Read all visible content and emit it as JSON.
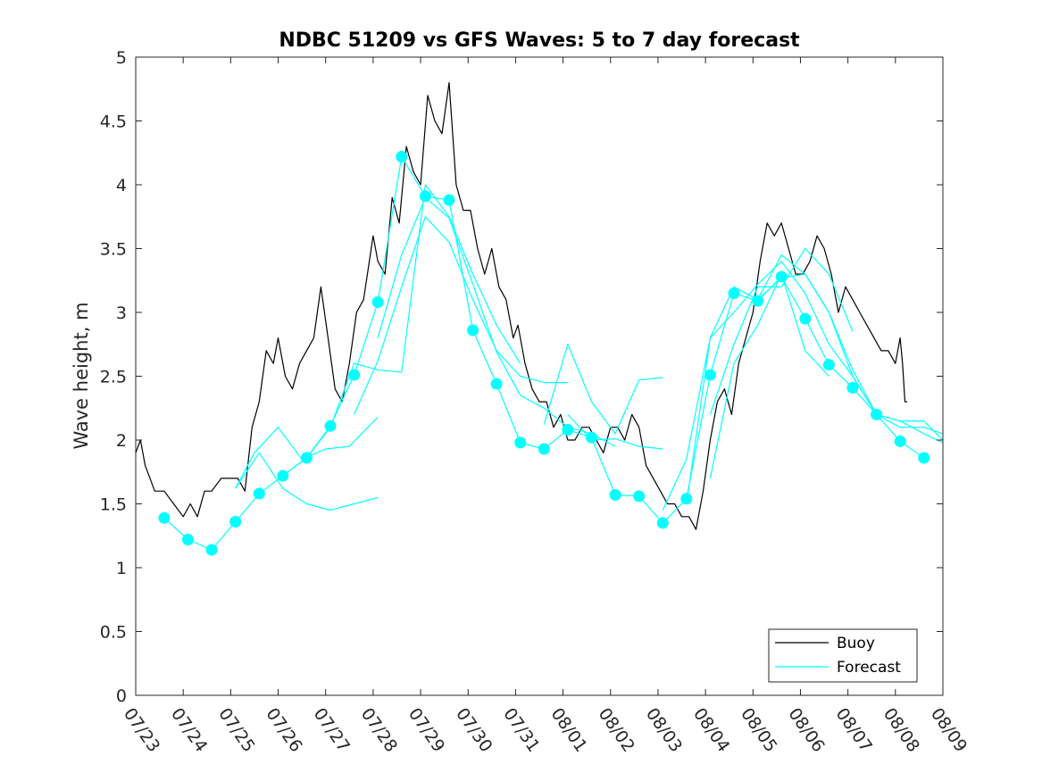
{
  "chart_data": {
    "type": "line",
    "title": "NDBC 51209 vs GFS Waves: 5 to 7 day forecast",
    "xlabel": "",
    "ylabel": "Wave height, m",
    "xlim": [
      "07/23",
      "08/09"
    ],
    "ylim": [
      0,
      5
    ],
    "yticks": [
      0,
      0.5,
      1,
      1.5,
      2,
      2.5,
      3,
      3.5,
      4,
      4.5,
      5
    ],
    "yticklabels": [
      "0",
      "0.5",
      "1",
      "1.5",
      "2",
      "2.5",
      "3",
      "3.5",
      "4",
      "4.5",
      "5"
    ],
    "xticklabels": [
      "07/23",
      "07/24",
      "07/25",
      "07/26",
      "07/27",
      "07/28",
      "07/29",
      "07/30",
      "07/31",
      "08/01",
      "08/02",
      "08/03",
      "08/04",
      "08/05",
      "08/06",
      "08/07",
      "08/08",
      "08/09"
    ],
    "grid": false,
    "legend_position": "bottom-right",
    "colors": {
      "buoy": "#000000",
      "forecast": "#00ffff",
      "axes": "#262626"
    },
    "series": [
      {
        "name": "Buoy",
        "x_days": [
          0.0,
          0.1,
          0.2,
          0.3,
          0.4,
          0.6,
          0.8,
          1.0,
          1.15,
          1.3,
          1.45,
          1.6,
          1.8,
          2.0,
          2.15,
          2.3,
          2.45,
          2.6,
          2.75,
          2.9,
          3.0,
          3.15,
          3.3,
          3.45,
          3.6,
          3.75,
          3.9,
          4.05,
          4.2,
          4.35,
          4.5,
          4.65,
          4.8,
          5.0,
          5.1,
          5.25,
          5.4,
          5.55,
          5.7,
          5.85,
          6.0,
          6.15,
          6.3,
          6.45,
          6.6,
          6.75,
          6.9,
          7.05,
          7.2,
          7.35,
          7.5,
          7.65,
          7.8,
          7.95,
          8.05,
          8.2,
          8.35,
          8.5,
          8.65,
          8.8,
          8.95,
          9.1,
          9.25,
          9.4,
          9.55,
          9.7,
          9.85,
          10.0,
          10.15,
          10.3,
          10.45,
          10.6,
          10.75,
          10.9,
          11.05,
          11.2,
          11.35,
          11.5,
          11.65,
          11.8,
          11.95,
          12.1,
          12.25,
          12.4,
          12.55,
          12.7,
          12.85,
          13.0,
          13.15,
          13.3,
          13.45,
          13.6,
          13.75,
          13.9,
          14.05,
          14.2,
          14.35,
          14.5,
          14.65,
          14.8,
          14.95,
          15.1,
          15.25,
          15.4,
          15.55,
          15.7,
          15.85,
          16.0,
          16.1,
          16.15,
          16.2,
          16.25
        ],
        "values": [
          1.9,
          2.0,
          1.8,
          1.7,
          1.6,
          1.6,
          1.5,
          1.4,
          1.5,
          1.4,
          1.6,
          1.6,
          1.7,
          1.7,
          1.7,
          1.6,
          2.1,
          2.3,
          2.7,
          2.6,
          2.8,
          2.5,
          2.4,
          2.6,
          2.7,
          2.8,
          3.2,
          2.8,
          2.4,
          2.3,
          2.6,
          3.0,
          3.1,
          3.6,
          3.4,
          3.3,
          3.9,
          3.7,
          4.3,
          4.1,
          4.0,
          4.7,
          4.5,
          4.4,
          4.8,
          4.0,
          3.8,
          3.8,
          3.5,
          3.3,
          3.5,
          3.2,
          3.1,
          2.8,
          2.9,
          2.6,
          2.4,
          2.3,
          2.3,
          2.1,
          2.2,
          2.0,
          2.0,
          2.1,
          2.1,
          2.0,
          1.9,
          2.1,
          2.1,
          2.0,
          2.2,
          2.1,
          1.8,
          1.7,
          1.6,
          1.5,
          1.5,
          1.4,
          1.4,
          1.3,
          1.6,
          2.0,
          2.3,
          2.4,
          2.2,
          2.6,
          2.8,
          3.0,
          3.4,
          3.7,
          3.6,
          3.7,
          3.5,
          3.3,
          3.3,
          3.4,
          3.6,
          3.5,
          3.3,
          3.0,
          3.2,
          3.1,
          3.0,
          2.9,
          2.8,
          2.7,
          2.7,
          2.6,
          2.8,
          2.6,
          2.3,
          2.3
        ]
      },
      {
        "name": "Forecast",
        "legend": true,
        "traces": [
          {
            "x_days": [
              0.6,
              1.1,
              1.6,
              2.1,
              2.6,
              3.1,
              3.6,
              4.1,
              4.6,
              5.1,
              5.6,
              6.1,
              6.6,
              7.1,
              7.6,
              8.1,
              8.6,
              9.1,
              9.6,
              10.1,
              10.6,
              11.1,
              11.6,
              12.1,
              12.6,
              13.1,
              13.6,
              14.1,
              14.6,
              15.1,
              15.6,
              16.1,
              16.6
            ],
            "values": [
              1.39,
              1.22,
              1.14,
              1.36,
              1.58,
              1.72,
              1.86,
              2.11,
              2.51,
              3.08,
              4.22,
              3.91,
              3.88,
              2.86,
              2.44,
              1.98,
              1.93,
              2.08,
              2.02,
              1.57,
              1.56,
              1.35,
              1.54,
              2.51,
              3.15,
              3.09,
              3.28,
              2.95,
              2.59,
              2.41,
              2.2,
              1.99,
              1.86
            ]
          },
          {
            "x_days": [
              2.1,
              2.5,
              3.0,
              3.5,
              4.0,
              4.5,
              5.1
            ],
            "values": [
              1.62,
              1.9,
              2.1,
              1.85,
              1.93,
              1.95,
              2.18
            ]
          },
          {
            "x_days": [
              2.1,
              2.6,
              3.1,
              3.6,
              4.1,
              4.6,
              5.1
            ],
            "values": [
              1.62,
              1.9,
              1.62,
              1.5,
              1.45,
              1.5,
              1.55
            ]
          },
          {
            "x_days": [
              3.1,
              3.6,
              4.1,
              4.6,
              5.1,
              5.6,
              6.1,
              6.6,
              7.1,
              7.6,
              8.1
            ],
            "values": [
              1.72,
              1.86,
              2.1,
              2.6,
              2.55,
              2.53,
              4.0,
              3.75,
              3.3,
              2.9,
              2.6
            ]
          },
          {
            "x_days": [
              4.6,
              5.1,
              5.6,
              6.1,
              6.6,
              7.1,
              7.6,
              8.1,
              8.6,
              9.1
            ],
            "values": [
              2.2,
              2.62,
              3.2,
              3.75,
              3.55,
              3.1,
              2.7,
              2.5,
              2.45,
              2.45
            ]
          },
          {
            "x_days": [
              5.1,
              5.6,
              6.1,
              6.6,
              7.1,
              7.6,
              8.1,
              8.6,
              9.1,
              9.6,
              10.1
            ],
            "values": [
              2.8,
              3.45,
              3.9,
              3.74,
              3.22,
              2.69,
              2.35,
              2.25,
              2.1,
              2.05,
              1.95
            ]
          },
          {
            "x_days": [
              8.6,
              9.1,
              9.6,
              10.1,
              10.6,
              11.1
            ],
            "values": [
              2.12,
              2.75,
              2.3,
              2.05,
              2.47,
              2.49
            ]
          },
          {
            "x_days": [
              9.1,
              9.6,
              10.1,
              10.6,
              11.1
            ],
            "values": [
              2.2,
              2.0,
              2.01,
              1.95,
              1.93
            ]
          },
          {
            "x_days": [
              11.1,
              11.6,
              12.1,
              12.6,
              13.1,
              13.6,
              14.1,
              14.6,
              15.1,
              15.6,
              16.1,
              16.6,
              17.0
            ],
            "values": [
              1.45,
              1.85,
              2.8,
              3.2,
              3.1,
              3.27,
              3.3,
              3.0,
              2.55,
              2.2,
              2.1,
              2.1,
              2.05
            ]
          },
          {
            "x_days": [
              11.6,
              12.1,
              12.6,
              13.1,
              13.6,
              14.1,
              14.6,
              15.1,
              15.6,
              16.1,
              16.6,
              17.0
            ],
            "values": [
              1.5,
              2.8,
              3.0,
              3.22,
              3.4,
              3.15,
              2.75,
              2.5,
              2.2,
              2.15,
              2.15,
              2.0
            ]
          },
          {
            "x_days": [
              13.1,
              13.6,
              14.1,
              14.6,
              15.1,
              15.6,
              16.1,
              16.6,
              17.0
            ],
            "values": [
              3.1,
              3.45,
              3.3,
              3.0,
              2.5,
              2.2,
              2.15,
              2.05,
              1.98
            ]
          },
          {
            "x_days": [
              12.1,
              12.6,
              13.1,
              13.6,
              14.1,
              14.6,
              15.1
            ],
            "values": [
              2.2,
              2.75,
              3.2,
              3.2,
              3.5,
              3.3,
              2.85
            ]
          },
          {
            "x_days": [
              12.1,
              12.6,
              13.1,
              13.6,
              14.1,
              14.6
            ],
            "values": [
              1.7,
              2.6,
              2.9,
              3.3,
              2.7,
              2.5
            ]
          }
        ]
      }
    ]
  }
}
